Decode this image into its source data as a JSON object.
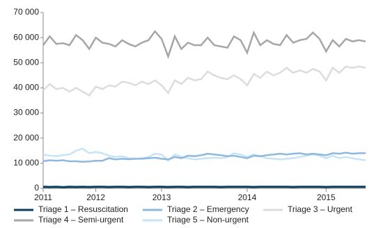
{
  "chart_data": {
    "type": "line",
    "categories": [
      "2011",
      null,
      null,
      null,
      null,
      null,
      null,
      null,
      "2012",
      null,
      null,
      null,
      null,
      null,
      null,
      null,
      null,
      null,
      "2013",
      null,
      null,
      null,
      null,
      null,
      null,
      null,
      null,
      null,
      null,
      null,
      null,
      "2014",
      null,
      null,
      null,
      null,
      null,
      null,
      null,
      null,
      null,
      null,
      null,
      "2015",
      null,
      null,
      null,
      null,
      null,
      null
    ],
    "ylim": [
      0,
      70000
    ],
    "yticks": [
      0,
      {
        "value": 10000,
        "label": "10 000"
      },
      {
        "value": 20000,
        "label": "20 000"
      },
      {
        "value": 30000,
        "label": "30 000"
      },
      {
        "value": 40000,
        "label": "40 000"
      },
      {
        "value": 50000,
        "label": "50 000"
      },
      {
        "value": 60000,
        "label": "60 000"
      },
      {
        "value": 70000,
        "label": "70 000"
      }
    ],
    "legend": "bottom",
    "series": [
      {
        "name": "Triage 1 – Resuscitation",
        "color": "#0d3b5e",
        "values": [
          600,
          550,
          600,
          500,
          600,
          550,
          600,
          550,
          600,
          600,
          550,
          600,
          600,
          550,
          600,
          600,
          550,
          600,
          650,
          550,
          600,
          600,
          550,
          600,
          600,
          650,
          600,
          550,
          600,
          600,
          650,
          600,
          550,
          600,
          600,
          650,
          600,
          600,
          550,
          600,
          650,
          600,
          600,
          550,
          600,
          650,
          600,
          600,
          650,
          600
        ]
      },
      {
        "name": "Triage 2 – Emergency",
        "color": "#8fb8dc",
        "values": [
          10800,
          11200,
          11000,
          11200,
          10800,
          10800,
          10600,
          10700,
          11000,
          11000,
          12000,
          11500,
          11800,
          11600,
          11800,
          11800,
          12000,
          12200,
          11800,
          11500,
          12500,
          12000,
          13000,
          12800,
          13200,
          13800,
          13500,
          13200,
          12800,
          13000,
          12500,
          12000,
          13000,
          12800,
          13200,
          13500,
          13800,
          13500,
          13800,
          14000,
          13500,
          13800,
          13500,
          13200,
          14000,
          13800,
          14200,
          13800,
          14000,
          14000
        ]
      },
      {
        "name": "Triage 3 – Urgent",
        "color": "#dcdcdc",
        "values": [
          39000,
          41500,
          39500,
          40000,
          38500,
          40000,
          38500,
          37000,
          40500,
          39500,
          41000,
          40500,
          42500,
          42000,
          41000,
          42500,
          41500,
          43000,
          41000,
          38000,
          43000,
          41500,
          44000,
          43000,
          43500,
          46500,
          45000,
          44000,
          43500,
          45000,
          43500,
          41000,
          45500,
          44000,
          46500,
          45000,
          46000,
          48000,
          46000,
          47000,
          46000,
          47500,
          46500,
          43000,
          48000,
          46000,
          48500,
          48000,
          48500,
          48000
        ]
      },
      {
        "name": "Triage 4 – Semi-urgent",
        "color": "#a6a6a6",
        "values": [
          57000,
          60500,
          57500,
          57800,
          57000,
          61000,
          59000,
          55500,
          60000,
          58000,
          57500,
          56500,
          59000,
          57500,
          56500,
          58000,
          59000,
          62500,
          59500,
          52500,
          60500,
          55500,
          58000,
          57000,
          57000,
          60000,
          57000,
          56500,
          56000,
          60500,
          59000,
          54000,
          62000,
          57000,
          59000,
          57500,
          57000,
          61000,
          58000,
          59000,
          59500,
          62000,
          59500,
          54500,
          59000,
          56500,
          59500,
          58500,
          59000,
          58500
        ]
      },
      {
        "name": "Triage 5 – Non-urgent",
        "color": "#c5e5f7",
        "values": [
          13500,
          13000,
          12800,
          13200,
          13500,
          15000,
          15800,
          14000,
          14500,
          14000,
          13000,
          12500,
          12800,
          12000,
          11800,
          12000,
          12500,
          13800,
          13500,
          11000,
          13500,
          12500,
          12000,
          11500,
          11800,
          12000,
          12200,
          12000,
          12500,
          14000,
          13500,
          12500,
          13500,
          12800,
          12000,
          11800,
          11500,
          11800,
          12000,
          12500,
          13000,
          13500,
          13000,
          12000,
          13000,
          12000,
          12500,
          12000,
          11500,
          11200
        ]
      }
    ]
  }
}
